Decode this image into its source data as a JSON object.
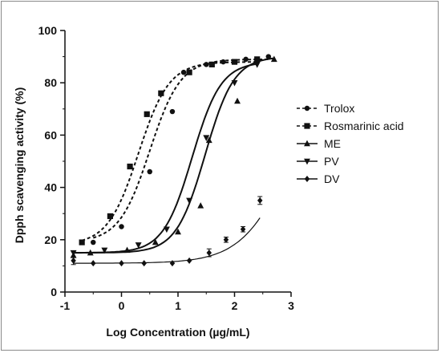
{
  "chart_data": {
    "type": "scatter",
    "xlabel": "Log Concentration (µg/mL)",
    "ylabel": "Dpph scavenging activity (%)",
    "xlim": [
      -1,
      3
    ],
    "ylim": [
      0,
      100
    ],
    "xticks": [
      -1,
      0,
      1,
      2,
      3
    ],
    "yticks": [
      0,
      20,
      40,
      60,
      80,
      100
    ],
    "grid": false,
    "legend_position": "right",
    "series": [
      {
        "name": "Trolox",
        "marker": "circle",
        "line_style": "dashed",
        "x": [
          -0.5,
          0.0,
          0.5,
          0.9,
          1.1,
          1.5,
          1.8,
          2.2,
          2.6
        ],
        "y": [
          19,
          25,
          46,
          69,
          84,
          87,
          88,
          89,
          90
        ],
        "errors": [
          0,
          0,
          0,
          0,
          0,
          0,
          0,
          0,
          0
        ],
        "fit": {
          "bottom": 19,
          "top": 89,
          "logec50": 0.5,
          "hill": 1.6
        }
      },
      {
        "name": "Rosmarinic acid",
        "marker": "square",
        "line_style": "dashed",
        "x": [
          -0.7,
          -0.2,
          0.15,
          0.45,
          0.7,
          1.2,
          1.6,
          2.0,
          2.4
        ],
        "y": [
          19,
          29,
          48,
          68,
          76,
          84,
          87,
          88,
          89
        ],
        "errors": [
          0,
          0,
          0,
          0,
          0,
          0,
          0,
          0,
          0
        ],
        "fit": {
          "bottom": 18,
          "top": 88,
          "logec50": 0.3,
          "hill": 1.6
        }
      },
      {
        "name": "ME",
        "marker": "triangle-up",
        "line_style": "solid",
        "x": [
          -0.85,
          -0.55,
          0.1,
          0.6,
          1.0,
          1.4,
          1.55,
          2.05,
          2.7
        ],
        "y": [
          14,
          15,
          16,
          19,
          23,
          33,
          58,
          73,
          89
        ],
        "errors": [
          0,
          0,
          0,
          0,
          0,
          0,
          0,
          0,
          0
        ],
        "fit": {
          "bottom": 15,
          "top": 90,
          "logec50": 1.48,
          "hill": 1.7
        }
      },
      {
        "name": "PV",
        "marker": "triangle-down",
        "line_style": "solid",
        "x": [
          -0.85,
          -0.3,
          0.3,
          0.8,
          1.2,
          1.5,
          2.0,
          2.4
        ],
        "y": [
          15,
          16,
          18,
          24,
          35,
          59,
          80,
          87
        ],
        "errors": [
          0,
          0,
          0,
          0,
          0,
          0,
          0,
          0
        ],
        "fit": {
          "bottom": 15,
          "top": 88,
          "logec50": 1.25,
          "hill": 1.7
        }
      },
      {
        "name": "DV",
        "marker": "diamond",
        "line_style": "solid",
        "x": [
          -0.85,
          -0.5,
          0.0,
          0.4,
          0.9,
          1.2,
          1.55,
          1.85,
          2.15,
          2.45
        ],
        "y": [
          12,
          11,
          11,
          11,
          11,
          12,
          15,
          20,
          24,
          35
        ],
        "errors": [
          1.5,
          0,
          0,
          0,
          0,
          0,
          1.5,
          1,
          1,
          1.5
        ],
        "fit": {
          "bottom": 11,
          "top": 90,
          "logec50": 3.0,
          "hill": 1.0
        }
      }
    ]
  }
}
